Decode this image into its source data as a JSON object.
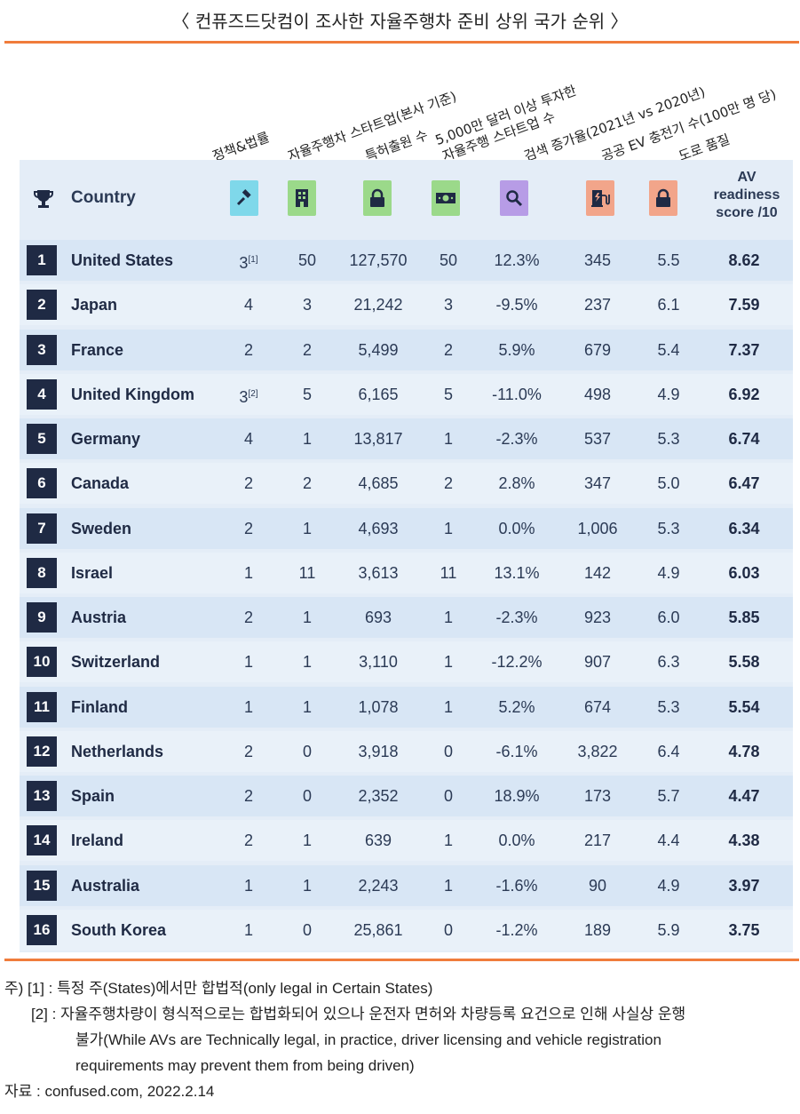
{
  "title": "〈 컨퓨즈드닷컴이 조사한 자율주행차 준비 상위 국가 순위 〉",
  "columns": {
    "country": "Country",
    "policy": "정책&법률",
    "startups_hq": "자율주행차 스타트업(본사 기준)",
    "patents": "특허출원 수",
    "invest_line1": "5,000만 달러 이상 투자한",
    "invest_line2": "자율주행 스타트업 수",
    "search_growth": "검색 증가율(2021년 vs 2020년)",
    "ev_chargers": "공공 EV 충전기 수(100만 명 당)",
    "road_quality": "도로 품질",
    "score_l1": "AV",
    "score_l2": "readiness",
    "score_l3": "score /10"
  },
  "icons": {
    "trophy": "trophy-icon",
    "policy": "gavel-icon",
    "startups": "building-icon",
    "patents": "lock-icon",
    "invest": "money-icon",
    "search": "search-icon",
    "ev": "ev-charger-icon",
    "road": "lock-icon"
  },
  "colors": {
    "accent_line": "#f07c3b",
    "rank_badge": "#1f2a44",
    "icon_policy": "#7fd8ea",
    "icon_startups": "#9bd98a",
    "icon_patents": "#9bd98a",
    "icon_invest": "#9bd98a",
    "icon_search": "#b79ce6",
    "icon_ev": "#f2a58a",
    "icon_road": "#f2a58a"
  },
  "rows": [
    {
      "rank": "1",
      "country": "United States",
      "policy": "3",
      "policy_note": "[1]",
      "startups": "50",
      "patents": "127,570",
      "invest": "50",
      "search": "12.3%",
      "ev": "345",
      "road": "5.5",
      "score": "8.62"
    },
    {
      "rank": "2",
      "country": "Japan",
      "policy": "4",
      "policy_note": "",
      "startups": "3",
      "patents": "21,242",
      "invest": "3",
      "search": "-9.5%",
      "ev": "237",
      "road": "6.1",
      "score": "7.59"
    },
    {
      "rank": "3",
      "country": "France",
      "policy": "2",
      "policy_note": "",
      "startups": "2",
      "patents": "5,499",
      "invest": "2",
      "search": "5.9%",
      "ev": "679",
      "road": "5.4",
      "score": "7.37"
    },
    {
      "rank": "4",
      "country": "United Kingdom",
      "policy": "3",
      "policy_note": "[2]",
      "startups": "5",
      "patents": "6,165",
      "invest": "5",
      "search": "-11.0%",
      "ev": "498",
      "road": "4.9",
      "score": "6.92"
    },
    {
      "rank": "5",
      "country": "Germany",
      "policy": "4",
      "policy_note": "",
      "startups": "1",
      "patents": "13,817",
      "invest": "1",
      "search": "-2.3%",
      "ev": "537",
      "road": "5.3",
      "score": "6.74"
    },
    {
      "rank": "6",
      "country": "Canada",
      "policy": "2",
      "policy_note": "",
      "startups": "2",
      "patents": "4,685",
      "invest": "2",
      "search": "2.8%",
      "ev": "347",
      "road": "5.0",
      "score": "6.47"
    },
    {
      "rank": "7",
      "country": "Sweden",
      "policy": "2",
      "policy_note": "",
      "startups": "1",
      "patents": "4,693",
      "invest": "1",
      "search": "0.0%",
      "ev": "1,006",
      "road": "5.3",
      "score": "6.34"
    },
    {
      "rank": "8",
      "country": "Israel",
      "policy": "1",
      "policy_note": "",
      "startups": "11",
      "patents": "3,613",
      "invest": "11",
      "search": "13.1%",
      "ev": "142",
      "road": "4.9",
      "score": "6.03"
    },
    {
      "rank": "9",
      "country": "Austria",
      "policy": "2",
      "policy_note": "",
      "startups": "1",
      "patents": "693",
      "invest": "1",
      "search": "-2.3%",
      "ev": "923",
      "road": "6.0",
      "score": "5.85"
    },
    {
      "rank": "10",
      "country": "Switzerland",
      "policy": "1",
      "policy_note": "",
      "startups": "1",
      "patents": "3,110",
      "invest": "1",
      "search": "-12.2%",
      "ev": "907",
      "road": "6.3",
      "score": "5.58"
    },
    {
      "rank": "11",
      "country": "Finland",
      "policy": "1",
      "policy_note": "",
      "startups": "1",
      "patents": "1,078",
      "invest": "1",
      "search": "5.2%",
      "ev": "674",
      "road": "5.3",
      "score": "5.54"
    },
    {
      "rank": "12",
      "country": "Netherlands",
      "policy": "2",
      "policy_note": "",
      "startups": "0",
      "patents": "3,918",
      "invest": "0",
      "search": "-6.1%",
      "ev": "3,822",
      "road": "6.4",
      "score": "4.78"
    },
    {
      "rank": "13",
      "country": "Spain",
      "policy": "2",
      "policy_note": "",
      "startups": "0",
      "patents": "2,352",
      "invest": "0",
      "search": "18.9%",
      "ev": "173",
      "road": "5.7",
      "score": "4.47"
    },
    {
      "rank": "14",
      "country": "Ireland",
      "policy": "2",
      "policy_note": "",
      "startups": "1",
      "patents": "639",
      "invest": "1",
      "search": "0.0%",
      "ev": "217",
      "road": "4.4",
      "score": "4.38"
    },
    {
      "rank": "15",
      "country": "Australia",
      "policy": "1",
      "policy_note": "",
      "startups": "1",
      "patents": "2,243",
      "invest": "1",
      "search": "-1.6%",
      "ev": "90",
      "road": "4.9",
      "score": "3.97"
    },
    {
      "rank": "16",
      "country": "South Korea",
      "policy": "1",
      "policy_note": "",
      "startups": "0",
      "patents": "25,861",
      "invest": "0",
      "search": "-1.2%",
      "ev": "189",
      "road": "5.9",
      "score": "3.75"
    }
  ],
  "notes": {
    "n1": "주) [1] : 특정 주(States)에서만 합법적(only legal in Certain States)",
    "n2a": "[2] : 자율주행차량이 형식적으로는 합법화되어 있으나 운전자 면허와 차량등록 요건으로 인해 사실상 운행",
    "n2b": "불가(While AVs are Technically legal, in practice, driver licensing and vehicle registration",
    "n2c": "requirements may prevent them from being driven)",
    "source": "자료 : confused.com, 2022.2.14"
  }
}
